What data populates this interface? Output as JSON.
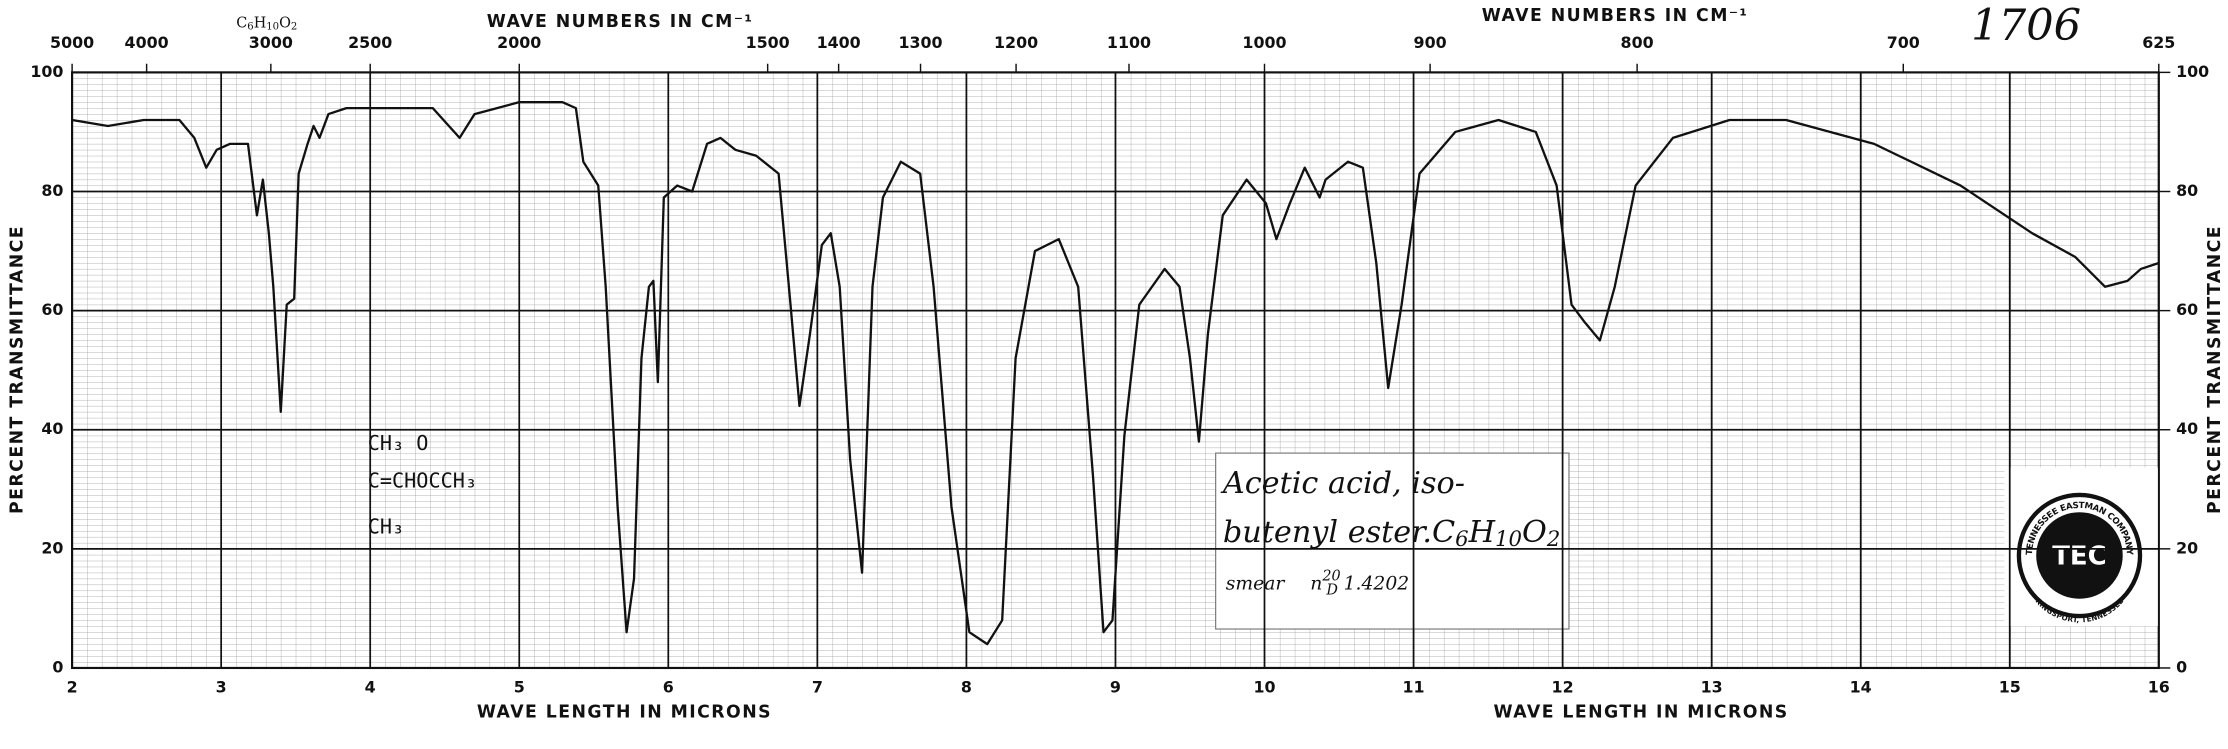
{
  "chart_data": {
    "type": "line",
    "catalog_number": "1706",
    "top_formula": [
      "C",
      "6",
      "H",
      "10",
      "O",
      "2"
    ],
    "top_axis_label": "WAVE NUMBERS IN CM⁻¹",
    "bottom_axis_label": "WAVE LENGTH IN MICRONS",
    "y_axis_label": "PERCENT TRANSMITTANCE",
    "annotation": {
      "line1": "Acetic acid, iso-",
      "line2": "butenyl ester.",
      "formula": [
        "C",
        "6",
        "H",
        "10",
        "O",
        "2"
      ],
      "line3": "smear",
      "index": "n",
      "index_sup": "20",
      "index_sub": "D",
      "index_value": "1.4202"
    },
    "structure": {
      "line1": "CH₃      O",
      "line2": "C=CHOCCH₃",
      "line3": "CH₃"
    },
    "logo": {
      "top": "TENNESSEE EASTMAN COMPANY",
      "bottom": "KINGSPORT, TENNESSEE",
      "center": "TEC"
    },
    "xlim": [
      2,
      16
    ],
    "xticks": [
      2,
      3,
      4,
      5,
      6,
      7,
      8,
      9,
      10,
      11,
      12,
      13,
      14,
      15,
      16
    ],
    "x2ticks": [
      5000,
      4000,
      3000,
      2500,
      2000,
      1500,
      1400,
      1300,
      1200,
      1100,
      1000,
      900,
      800,
      700,
      625
    ],
    "ylim": [
      0,
      100
    ],
    "yticks": [
      0,
      20,
      40,
      60,
      80,
      100
    ],
    "y2lim": [
      0,
      100
    ],
    "y2ticks": [
      0,
      20,
      40,
      60,
      80,
      100
    ],
    "grid": true,
    "series": [
      {
        "color": "#111111",
        "x": [
          2.0,
          2.24,
          2.48,
          2.72,
          2.82,
          2.9,
          2.97,
          3.06,
          3.18,
          3.24,
          3.28,
          3.32,
          3.35,
          3.4,
          3.44,
          3.49,
          3.52,
          3.58,
          3.62,
          3.66,
          3.72,
          3.84,
          4.22,
          4.42,
          4.6,
          4.7,
          5.0,
          5.29,
          5.38,
          5.43,
          5.53,
          5.58,
          5.66,
          5.72,
          5.77,
          5.82,
          5.87,
          5.9,
          5.93,
          5.97,
          6.06,
          6.16,
          6.26,
          6.35,
          6.45,
          6.59,
          6.74,
          6.82,
          6.88,
          6.95,
          7.03,
          7.09,
          7.15,
          7.22,
          7.3,
          7.37,
          7.44,
          7.56,
          7.69,
          7.78,
          7.9,
          8.02,
          8.14,
          8.24,
          8.33,
          8.46,
          8.62,
          8.75,
          8.85,
          8.92,
          8.98,
          9.06,
          9.16,
          9.33,
          9.43,
          9.5,
          9.56,
          9.62,
          9.72,
          9.88,
          10.01,
          10.08,
          10.17,
          10.27,
          10.37,
          10.41,
          10.56,
          10.66,
          10.75,
          10.83,
          10.92,
          11.04,
          11.28,
          11.57,
          11.82,
          11.96,
          12.06,
          12.15,
          12.25,
          12.35,
          12.49,
          12.74,
          13.12,
          13.5,
          14.09,
          14.67,
          15.15,
          15.44,
          15.64,
          15.79,
          15.88,
          16.0
        ],
        "values": [
          92,
          91,
          92,
          92,
          89,
          84,
          87,
          88,
          88,
          76,
          82,
          73,
          64,
          43,
          61,
          62,
          83,
          88,
          91,
          89,
          93,
          94,
          94,
          94,
          89,
          93,
          95,
          95,
          94,
          85,
          81,
          64,
          27,
          6,
          15,
          52,
          64,
          65,
          48,
          79,
          81,
          80,
          88,
          89,
          87,
          86,
          83,
          61,
          44,
          56,
          71,
          73,
          64,
          35,
          16,
          64,
          79,
          85,
          83,
          64,
          27,
          6,
          4,
          8,
          52,
          70,
          72,
          64,
          32,
          6,
          8,
          39,
          61,
          67,
          64,
          52,
          38,
          56,
          76,
          82,
          78,
          72,
          78,
          84,
          79,
          82,
          85,
          84,
          68,
          47,
          61,
          83,
          90,
          92,
          90,
          81,
          61,
          58,
          55,
          64,
          81,
          89,
          92,
          92,
          88,
          81,
          73,
          69,
          64,
          65,
          67,
          68
        ]
      }
    ]
  }
}
